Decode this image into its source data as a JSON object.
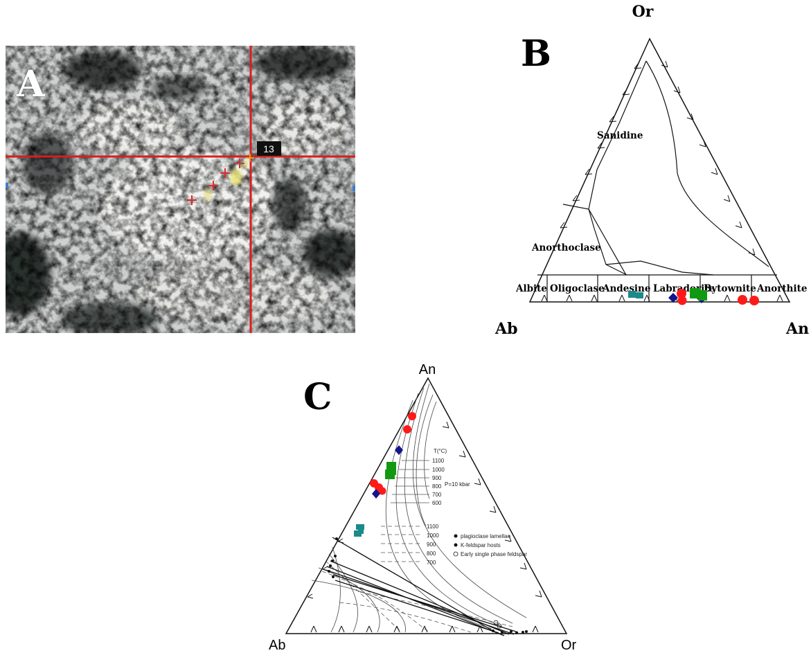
{
  "panel_a": {
    "label": "A",
    "marker_label": "13"
  },
  "panel_b": {
    "label": "B",
    "vertices": {
      "top": "Or",
      "left": "Ab",
      "right": "An"
    },
    "fields": [
      "Sanidine",
      "Anorthoclase",
      "Albite",
      "Oligoclase",
      "Andesine",
      "Labradorite",
      "Bytownite",
      "Anorthite"
    ]
  },
  "panel_c": {
    "label": "C",
    "vertices": {
      "top": "An",
      "left": "Ab",
      "right": "Or"
    },
    "temp_header": "T(°C)",
    "temps_upper": [
      "1100",
      "1000",
      "900",
      "800",
      "700",
      "600"
    ],
    "pressure": "P=10 kbar",
    "temps_lower": [
      "1100",
      "1000",
      "900",
      "800",
      "700"
    ],
    "legend": [
      "plagioclase lamellae",
      "K-feldspar hosts",
      "Early single phase feldspar"
    ]
  },
  "colors": {
    "red": "#ff1a1a",
    "blue": "#14148c",
    "green": "#119911",
    "teal": "#1a8a8a",
    "crosshair": "#d81e1e"
  }
}
